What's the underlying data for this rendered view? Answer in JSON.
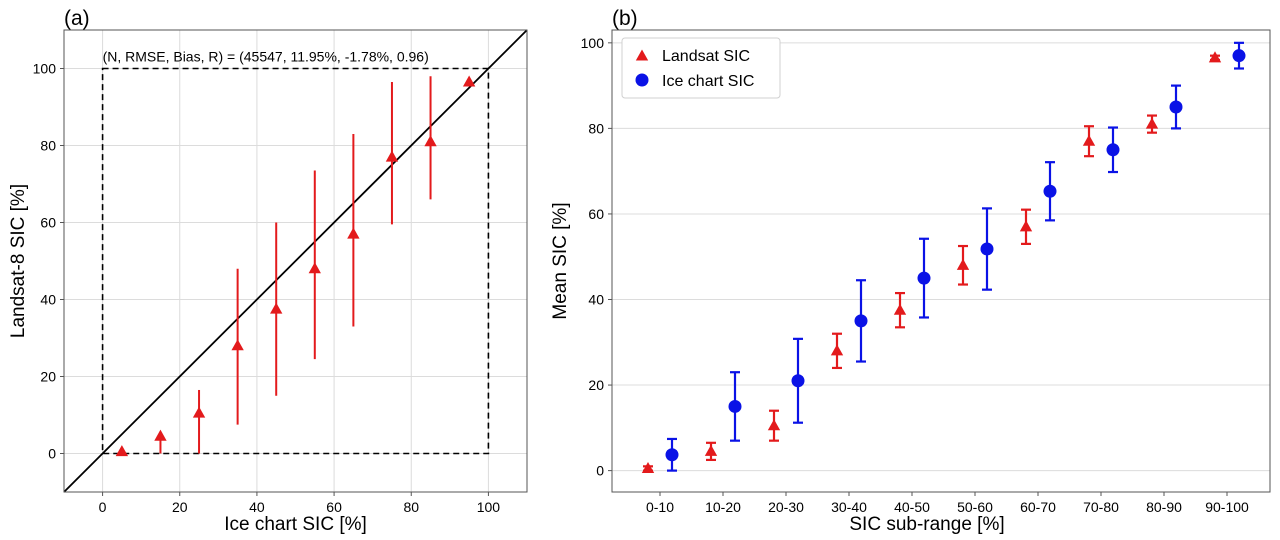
{
  "chart_data": [
    {
      "panel_label": "(a)",
      "type": "scatter",
      "xlabel": "Ice chart SIC [%]",
      "ylabel": "Landsat-8 SIC [%]",
      "xlim": [
        -10,
        110
      ],
      "ylim": [
        -10,
        110
      ],
      "xticks": [
        0,
        20,
        40,
        60,
        80,
        100
      ],
      "yticks": [
        0,
        20,
        40,
        60,
        80,
        100
      ],
      "grid": true,
      "annotation": "(N, RMSE, Bias, R) = (45547, 11.95%, -1.78%, 0.96)",
      "identity_line": true,
      "bounding_box": [
        0,
        100
      ],
      "series": [
        {
          "marker": "triangle",
          "color": "#e31a1c",
          "x": [
            5,
            15,
            25,
            35,
            45,
            55,
            65,
            75,
            85,
            95
          ],
          "y": [
            0.5,
            4.5,
            10.5,
            28,
            37.5,
            48,
            57,
            77,
            81,
            96.5
          ],
          "err_low": [
            0,
            0,
            0,
            7.5,
            15,
            24.5,
            33,
            59.5,
            66,
            96
          ],
          "err_high": [
            1,
            5,
            16.5,
            48,
            60,
            73.5,
            83,
            96.5,
            98,
            97.5
          ]
        }
      ]
    },
    {
      "panel_label": "(b)",
      "type": "scatter",
      "xlabel": "SIC sub-range [%]",
      "ylabel": "Mean SIC [%]",
      "categories": [
        "0-10",
        "10-20",
        "20-30",
        "30-40",
        "40-50",
        "50-60",
        "60-70",
        "70-80",
        "80-90",
        "90-100"
      ],
      "ylim": [
        -5,
        103
      ],
      "yticks": [
        0,
        20,
        40,
        60,
        80,
        100
      ],
      "grid": "y",
      "legend_position": "top-left",
      "series": [
        {
          "name": "Landsat SIC",
          "marker": "triangle",
          "color": "#e31a1c",
          "values": [
            0.5,
            4.5,
            10.5,
            28,
            37.5,
            48,
            57,
            77,
            81,
            96.5
          ],
          "err": [
            0.5,
            2,
            3.5,
            4,
            4,
            4.5,
            4,
            3.5,
            2,
            0.5
          ]
        },
        {
          "name": "Ice chart SIC",
          "marker": "circle",
          "color": "#0a12e6",
          "values": [
            3.7,
            15,
            21,
            35,
            45,
            51.8,
            65.3,
            75,
            85,
            97
          ],
          "err": [
            3.7,
            8,
            9.8,
            9.5,
            9.2,
            9.5,
            6.8,
            5.2,
            5,
            3
          ]
        }
      ]
    }
  ]
}
